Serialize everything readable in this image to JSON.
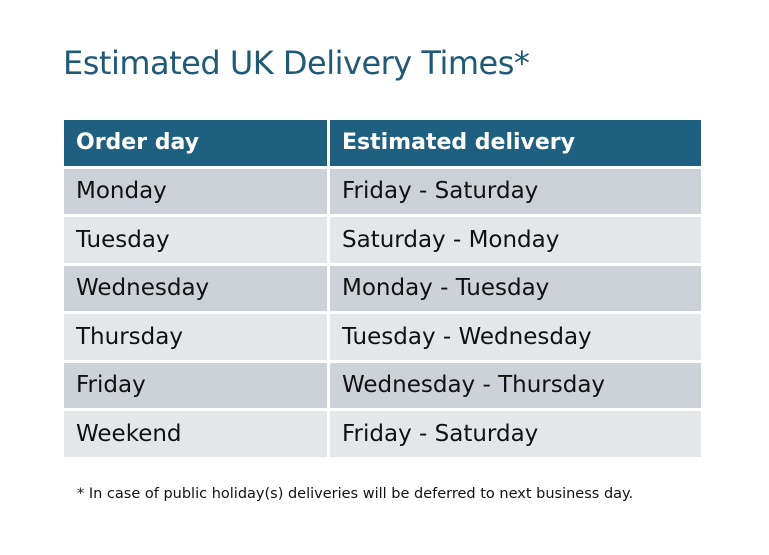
{
  "title": "Estimated UK Delivery Times*",
  "table": {
    "headers": [
      "Order day",
      "Estimated delivery"
    ],
    "rows": [
      [
        "Monday",
        "Friday - Saturday"
      ],
      [
        "Tuesday",
        "Saturday - Monday"
      ],
      [
        "Wednesday",
        "Monday - Tuesday"
      ],
      [
        "Thursday",
        "Tuesday - Wednesday"
      ],
      [
        "Friday",
        "Wednesday - Thursday"
      ],
      [
        "Weekend",
        "Friday - Saturday"
      ]
    ]
  },
  "footnote": "* In case of public holiday(s) deliveries will be deferred to next business day.",
  "colors": {
    "header": "#1f6080",
    "title": "#1f5a78",
    "row_dark": "#cdd1d8",
    "row_light": "#e4e7ea"
  }
}
